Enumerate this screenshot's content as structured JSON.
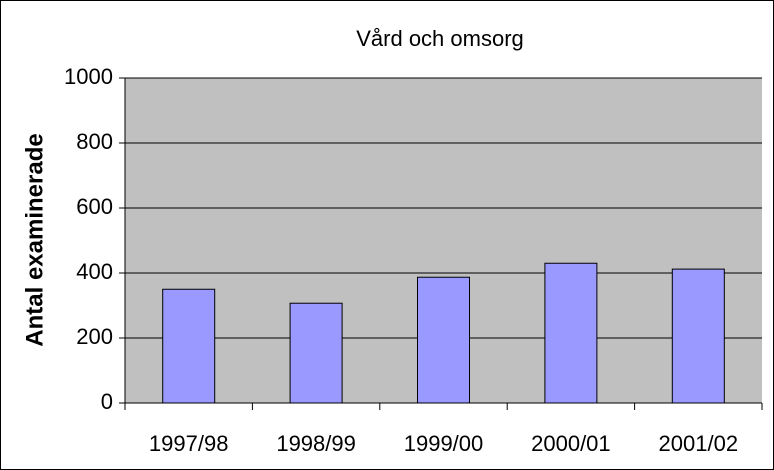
{
  "chart_data": {
    "type": "bar",
    "title": "Vård och omsorg",
    "y_label": "Antal examinerade",
    "categories": [
      "1997/98",
      "1998/99",
      "1999/00",
      "2000/01",
      "2001/02"
    ],
    "values": [
      350,
      307,
      387,
      430,
      412
    ],
    "color": "#9999ff",
    "ylim": [
      0,
      1000
    ],
    "yticks": [
      0,
      200,
      400,
      600,
      800,
      1000
    ],
    "grid": true
  }
}
